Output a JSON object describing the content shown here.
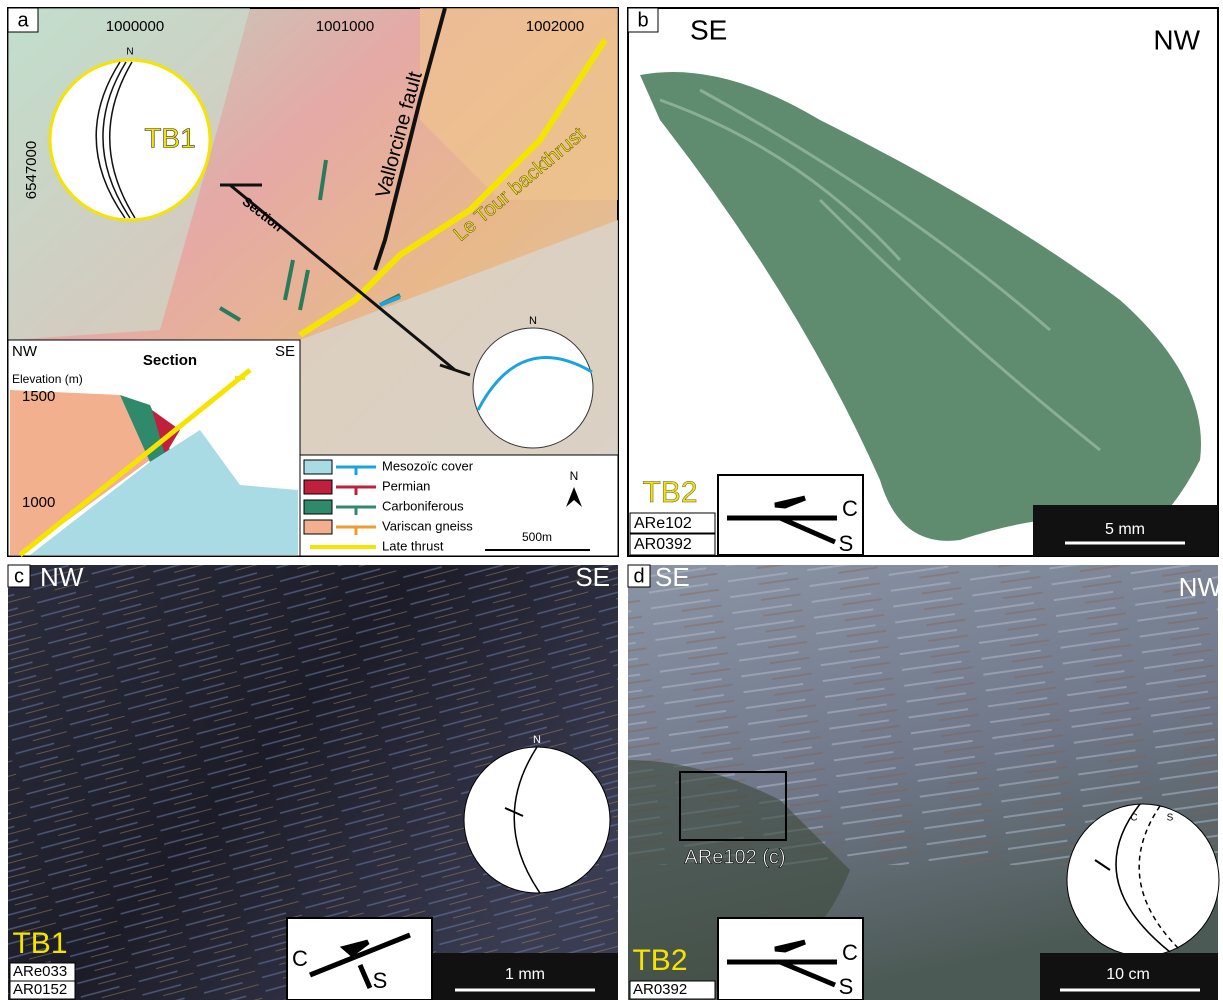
{
  "panel_a": {
    "label": "a",
    "x_coords": [
      "1000000",
      "1001000",
      "1002000"
    ],
    "y_coord": "6547000",
    "stereonet": {
      "site": "TB1",
      "north": "N"
    },
    "section_line": "Section",
    "faults": [
      "Vallorcine fault",
      "Le Tour backthrust"
    ],
    "stereonet2_north": "N",
    "section": {
      "left": "NW",
      "right": "SE",
      "title": "Section",
      "axis_label": "Elevation (m)",
      "elevations": [
        "1500",
        "1000"
      ]
    },
    "legend": [
      "Mesozoïc cover",
      "Permian",
      "Carboniferous",
      "Variscan gneiss",
      "Late thrust"
    ],
    "north": "N",
    "scale": "500m"
  },
  "panel_b": {
    "label": "b",
    "left": "SE",
    "right": "NW",
    "site": "TB2",
    "samples": [
      "ARe102",
      "AR0392"
    ],
    "shear": [
      "C",
      "S"
    ],
    "scale": "5 mm"
  },
  "panel_c": {
    "label": "c",
    "left": "NW",
    "right": "SE",
    "site": "TB1",
    "samples": [
      "ARe033",
      "AR0152"
    ],
    "shear": [
      "C",
      "S"
    ],
    "scale": "1 mm",
    "north": "N"
  },
  "panel_d": {
    "label": "d",
    "left": "SE",
    "right": "NW",
    "box_label": "ARe102 (c)",
    "site": "TB2",
    "samples": [
      "AR0392"
    ],
    "shear": [
      "C",
      "S"
    ],
    "scale": "10 cm",
    "stereonet": [
      "C",
      "S"
    ]
  }
}
